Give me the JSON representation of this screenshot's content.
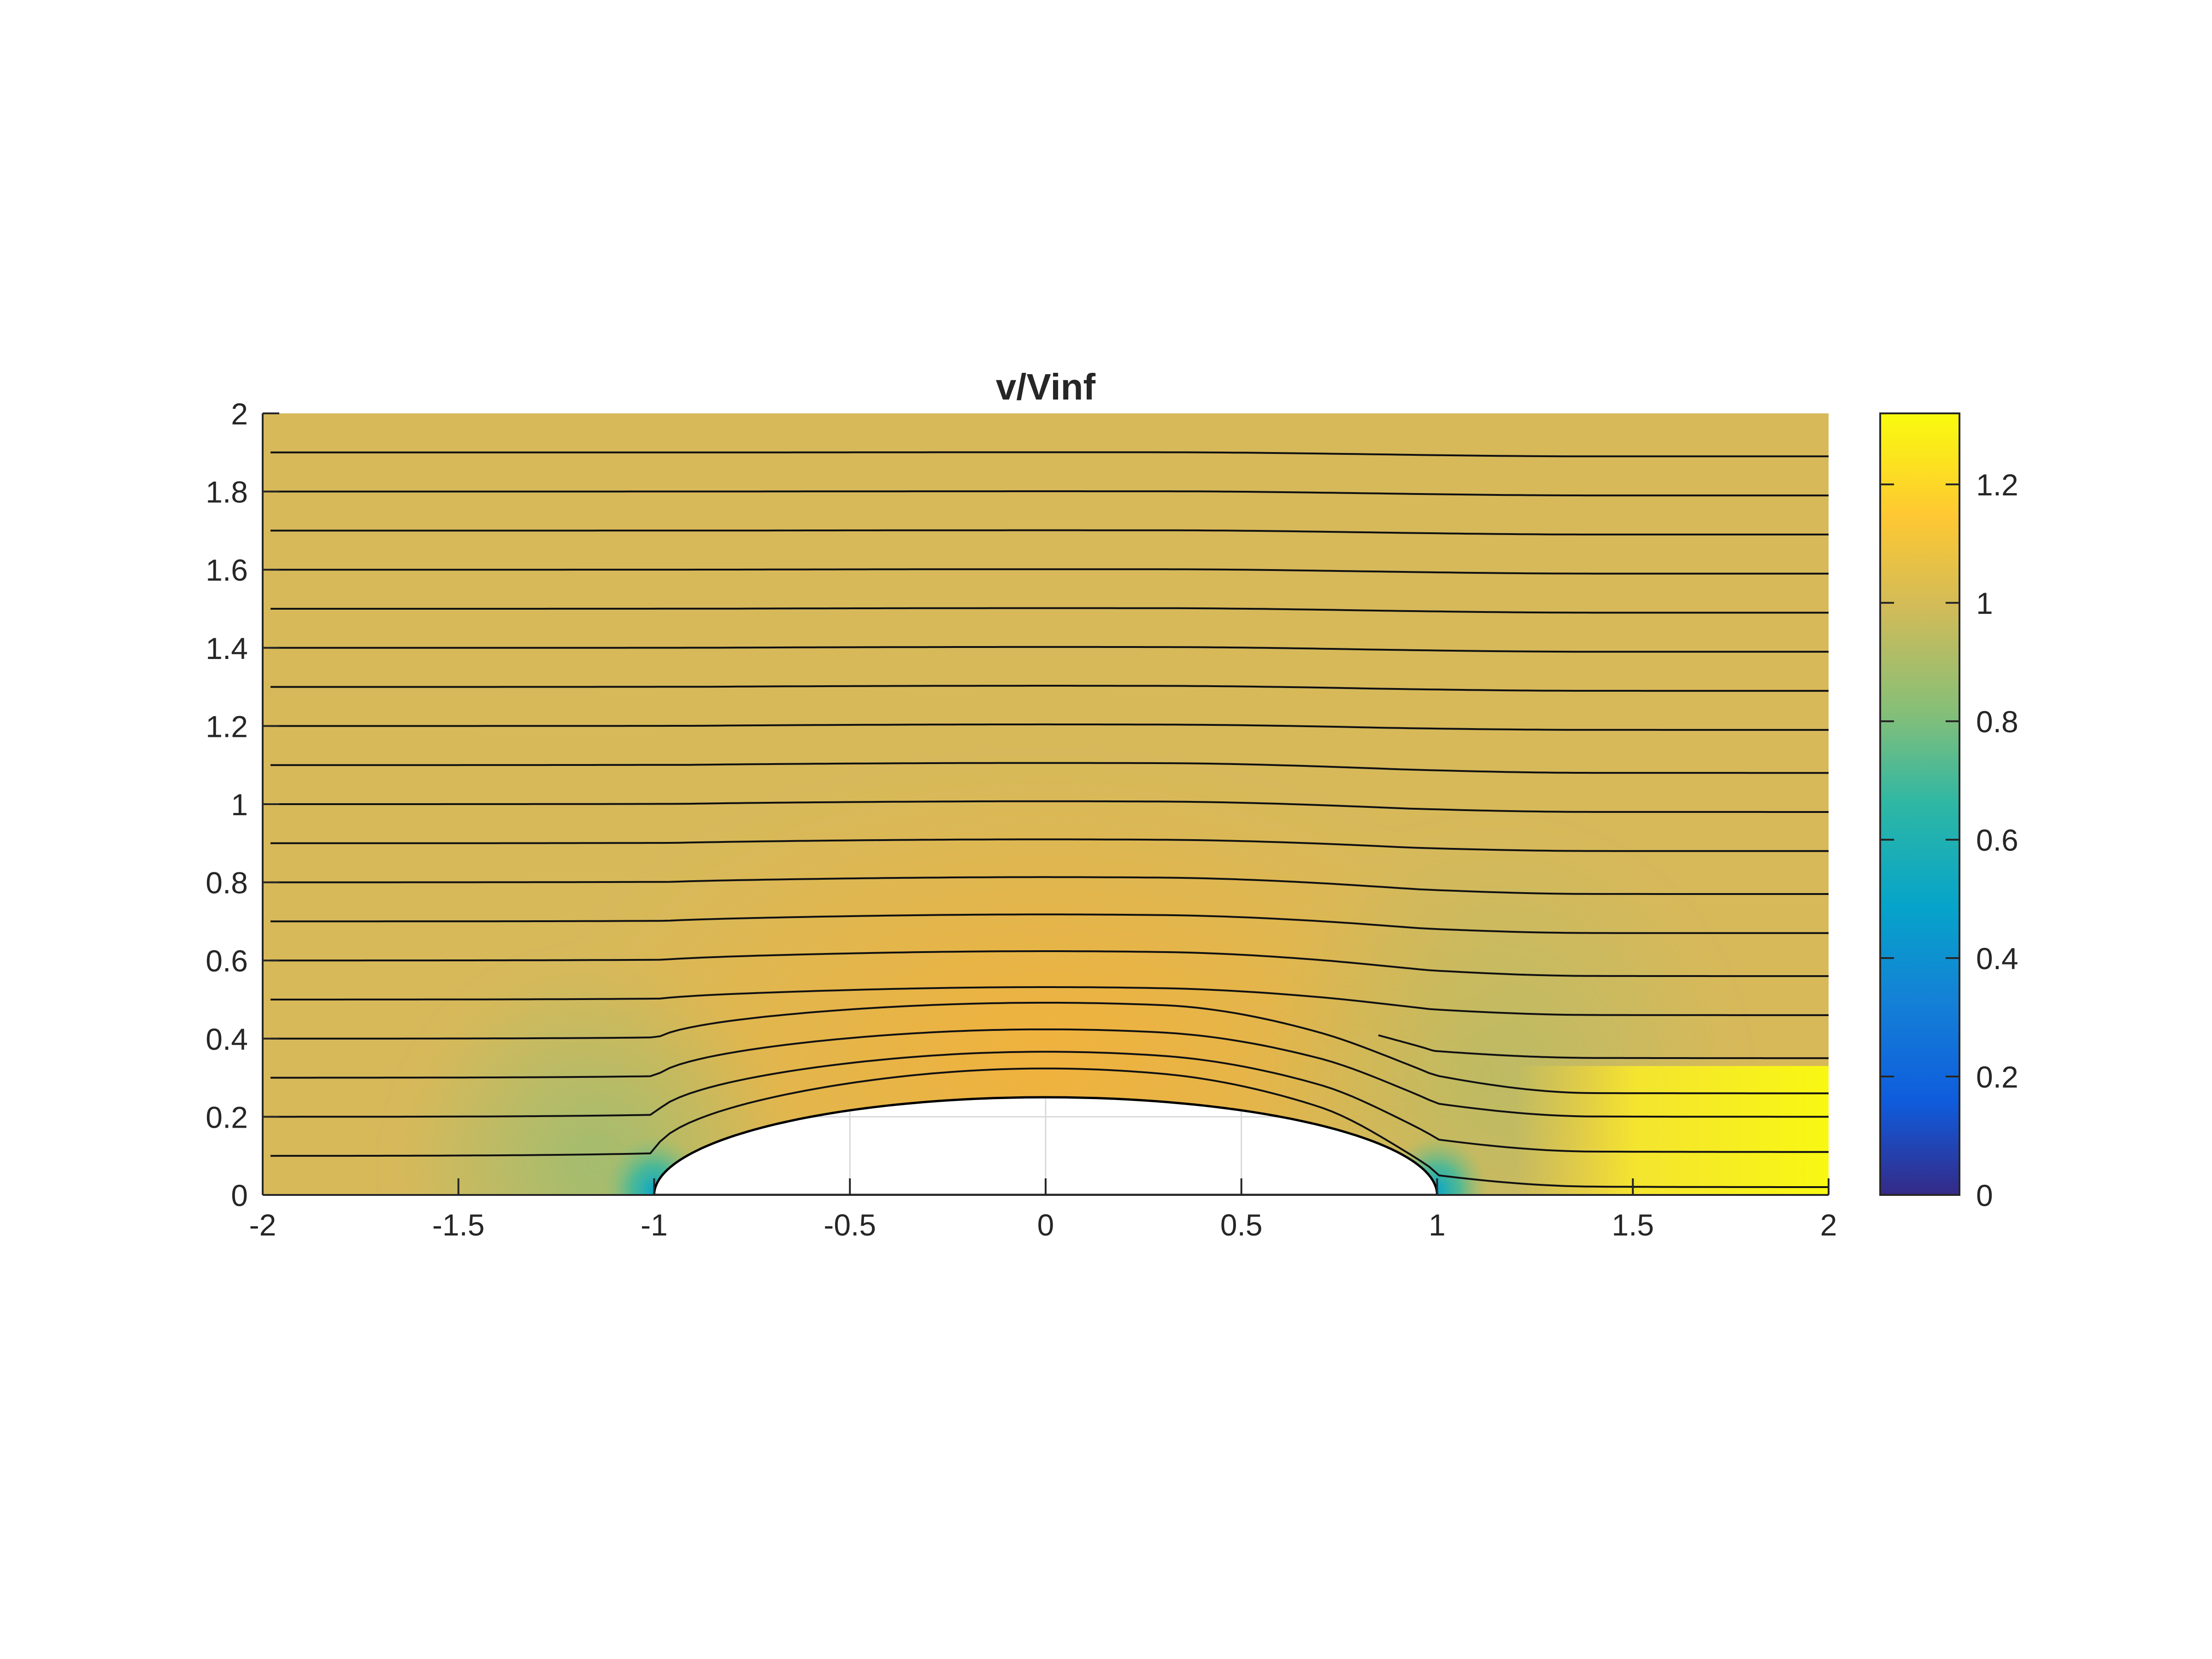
{
  "chart_data": {
    "type": "heatmap",
    "title": "v/Vinf",
    "xlabel": "",
    "ylabel": "",
    "xlim": [
      -2,
      2
    ],
    "ylim": [
      0,
      2
    ],
    "x_ticks": [
      "-2",
      "-1.5",
      "-1",
      "-0.5",
      "0",
      "0.5",
      "1",
      "1.5",
      "2"
    ],
    "y_ticks": [
      "0",
      "0.2",
      "0.4",
      "0.6",
      "0.8",
      "1",
      "1.2",
      "1.4",
      "1.6",
      "1.8",
      "2"
    ],
    "grid": true,
    "colorbar": {
      "range": [
        0,
        1.32
      ],
      "ticks": [
        "0",
        "0.2",
        "0.4",
        "0.6",
        "0.8",
        "1",
        "1.2"
      ],
      "colormap": "parula"
    },
    "body": {
      "shape": "half-ellipse",
      "x_center": 0,
      "half_length": 1,
      "height": 0.25
    },
    "field_summary": {
      "freestream": 1.0,
      "stagnation_points": [
        [
          -1,
          0
        ],
        [
          1,
          0
        ]
      ],
      "stagnation_value": 0.0,
      "top_of_body_value": 1.1,
      "wake_region": {
        "x": [
          1.2,
          2.0
        ],
        "y": [
          0.0,
          0.33
        ],
        "value": 1.3
      }
    },
    "streamlines": [
      {
        "y_start": 0.0,
        "y_end": 0.0
      },
      {
        "y_start": 0.1,
        "y_end": 0.02
      },
      {
        "y_start": 0.2,
        "y_end": 0.11
      },
      {
        "y_start": 0.3,
        "y_end": 0.2
      },
      {
        "y_start": 0.4,
        "y_end": 0.26
      },
      {
        "y_start": 0.4,
        "y_end": 0.35
      },
      {
        "y_start": 0.5,
        "y_end": 0.46
      },
      {
        "y_start": 0.6,
        "y_end": 0.56
      },
      {
        "y_start": 0.7,
        "y_end": 0.67
      },
      {
        "y_start": 0.8,
        "y_end": 0.77
      },
      {
        "y_start": 0.9,
        "y_end": 0.88
      },
      {
        "y_start": 1.0,
        "y_end": 0.98
      },
      {
        "y_start": 1.1,
        "y_end": 1.08
      },
      {
        "y_start": 1.2,
        "y_end": 1.19
      },
      {
        "y_start": 1.3,
        "y_end": 1.29
      },
      {
        "y_start": 1.4,
        "y_end": 1.39
      },
      {
        "y_start": 1.5,
        "y_end": 1.49
      },
      {
        "y_start": 1.6,
        "y_end": 1.59
      },
      {
        "y_start": 1.7,
        "y_end": 1.69
      },
      {
        "y_start": 1.8,
        "y_end": 1.79
      },
      {
        "y_start": 1.9,
        "y_end": 1.89
      }
    ]
  }
}
